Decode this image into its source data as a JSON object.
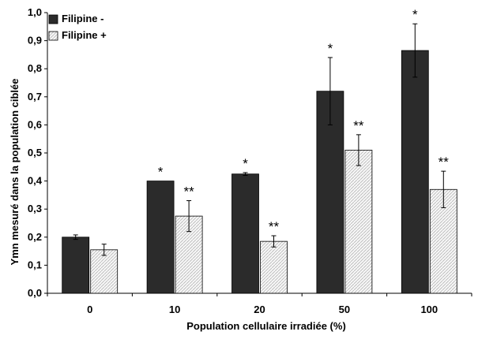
{
  "chart_data": {
    "type": "bar",
    "xlabel": "Population cellulaire irradiée (%)",
    "ylabel": "Ymn mesuré dans la population ciblée",
    "categories": [
      "0",
      "10",
      "20",
      "50",
      "100"
    ],
    "ylim": [
      0,
      1.0
    ],
    "yticks": [
      "0,0",
      "0,1",
      "0,2",
      "0,3",
      "0,4",
      "0,5",
      "0,6",
      "0,7",
      "0,8",
      "0,9",
      "1,0"
    ],
    "legend_position": "top-left",
    "grid": false,
    "series": [
      {
        "name": "Filipine -",
        "color": "#2b2b2b",
        "values": [
          0.2,
          0.4,
          0.425,
          0.72,
          0.865
        ],
        "errors": [
          0.008,
          0.0,
          0.005,
          0.12,
          0.095
        ],
        "significance": [
          "",
          "*",
          "*",
          "*",
          "*"
        ]
      },
      {
        "name": "Filipine +",
        "color": "#eeeeee",
        "values": [
          0.155,
          0.275,
          0.185,
          0.51,
          0.37
        ],
        "errors": [
          0.02,
          0.055,
          0.02,
          0.055,
          0.065
        ],
        "significance": [
          "",
          "**",
          "**",
          "**",
          "**"
        ]
      }
    ]
  }
}
